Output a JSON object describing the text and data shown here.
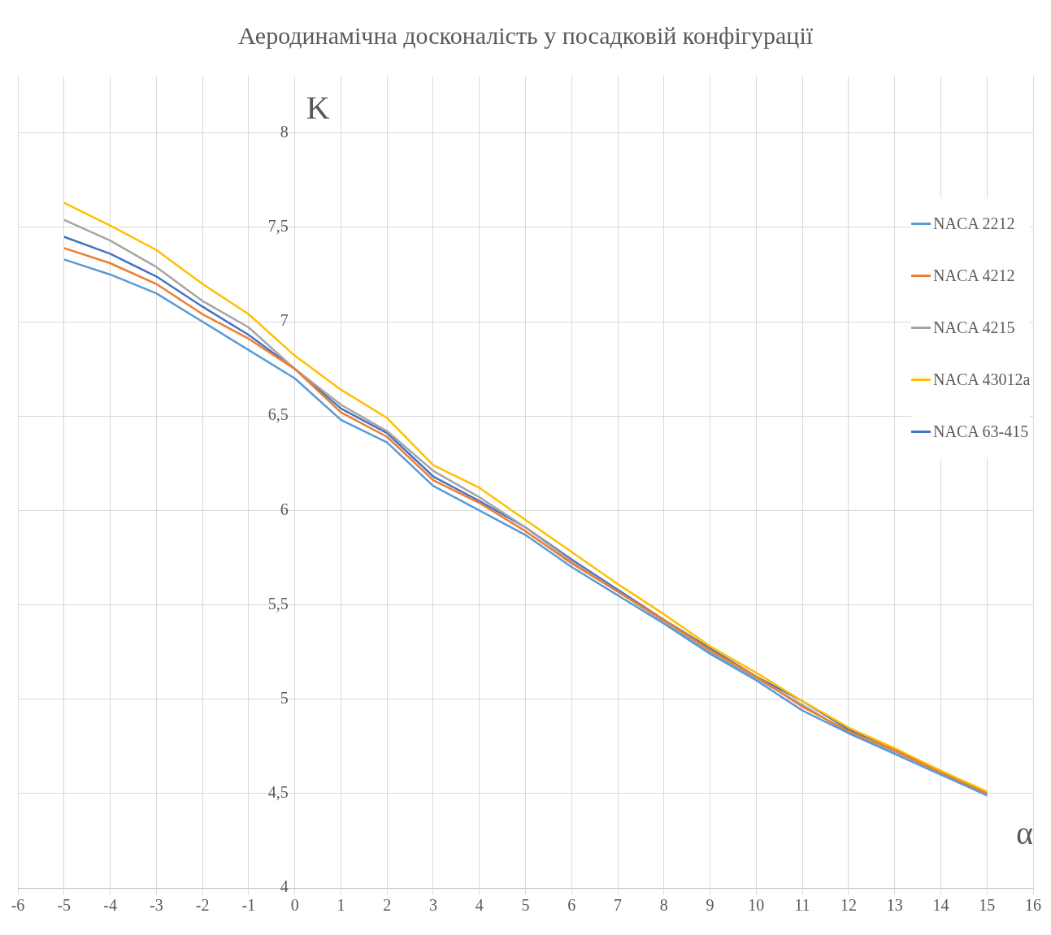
{
  "chart_data": {
    "type": "line",
    "title": "Аеродинамічна досконалість у посадковій конфігурації",
    "xlabel": "α",
    "ylabel": "K",
    "x": [
      -5,
      -4,
      -3,
      -2,
      -1,
      0,
      1,
      2,
      3,
      4,
      5,
      6,
      7,
      8,
      9,
      10,
      11,
      12,
      13,
      14,
      15
    ],
    "series": [
      {
        "name": "NACA 2212",
        "color": "#5b9bd5",
        "values": [
          7.33,
          7.25,
          7.15,
          7.0,
          6.85,
          6.7,
          6.48,
          6.36,
          6.13,
          6.0,
          5.87,
          5.7,
          5.55,
          5.4,
          5.24,
          5.1,
          4.94,
          4.82,
          4.71,
          4.6,
          4.49
        ]
      },
      {
        "name": "NACA 4212",
        "color": "#ed7d31",
        "values": [
          7.39,
          7.31,
          7.2,
          7.04,
          6.91,
          6.75,
          6.52,
          6.39,
          6.16,
          6.04,
          5.89,
          5.72,
          5.57,
          5.42,
          5.26,
          5.12,
          4.96,
          4.83,
          4.73,
          4.61,
          4.5
        ]
      },
      {
        "name": "NACA 4215",
        "color": "#a5a5a5",
        "values": [
          7.54,
          7.43,
          7.29,
          7.11,
          6.97,
          6.75,
          6.56,
          6.42,
          6.21,
          6.07,
          5.91,
          5.73,
          5.57,
          5.41,
          5.25,
          5.11,
          4.97,
          4.82,
          4.72,
          4.61,
          4.49
        ]
      },
      {
        "name": "NACA 43012a",
        "color": "#ffc000",
        "values": [
          7.63,
          7.51,
          7.38,
          7.2,
          7.04,
          6.82,
          6.64,
          6.49,
          6.24,
          6.12,
          5.95,
          5.78,
          5.61,
          5.45,
          5.28,
          5.14,
          4.99,
          4.85,
          4.74,
          4.62,
          4.51
        ]
      },
      {
        "name": "NACA 63-415",
        "color": "#4472c4",
        "values": [
          7.45,
          7.36,
          7.24,
          7.08,
          6.93,
          6.75,
          6.54,
          6.41,
          6.18,
          6.05,
          5.91,
          5.74,
          5.58,
          5.42,
          5.27,
          5.12,
          4.99,
          4.84,
          4.73,
          4.62,
          4.5
        ]
      }
    ],
    "xlim": [
      -6,
      16
    ],
    "xticks": [
      -6,
      -5,
      -4,
      -3,
      -2,
      -1,
      0,
      1,
      2,
      3,
      4,
      5,
      6,
      7,
      8,
      9,
      10,
      11,
      12,
      13,
      14,
      15,
      16
    ],
    "ylim": [
      4,
      8.3
    ],
    "yticks": [
      4,
      {
        "value": 4.5,
        "label": "4,5"
      },
      5,
      {
        "value": 5.5,
        "label": "5,5"
      },
      6,
      {
        "value": 6.5,
        "label": "6,5"
      },
      7,
      {
        "value": 7.5,
        "label": "7,5"
      },
      8
    ],
    "grid": true,
    "legend": "right",
    "marker": "none",
    "line_style": "solid"
  }
}
